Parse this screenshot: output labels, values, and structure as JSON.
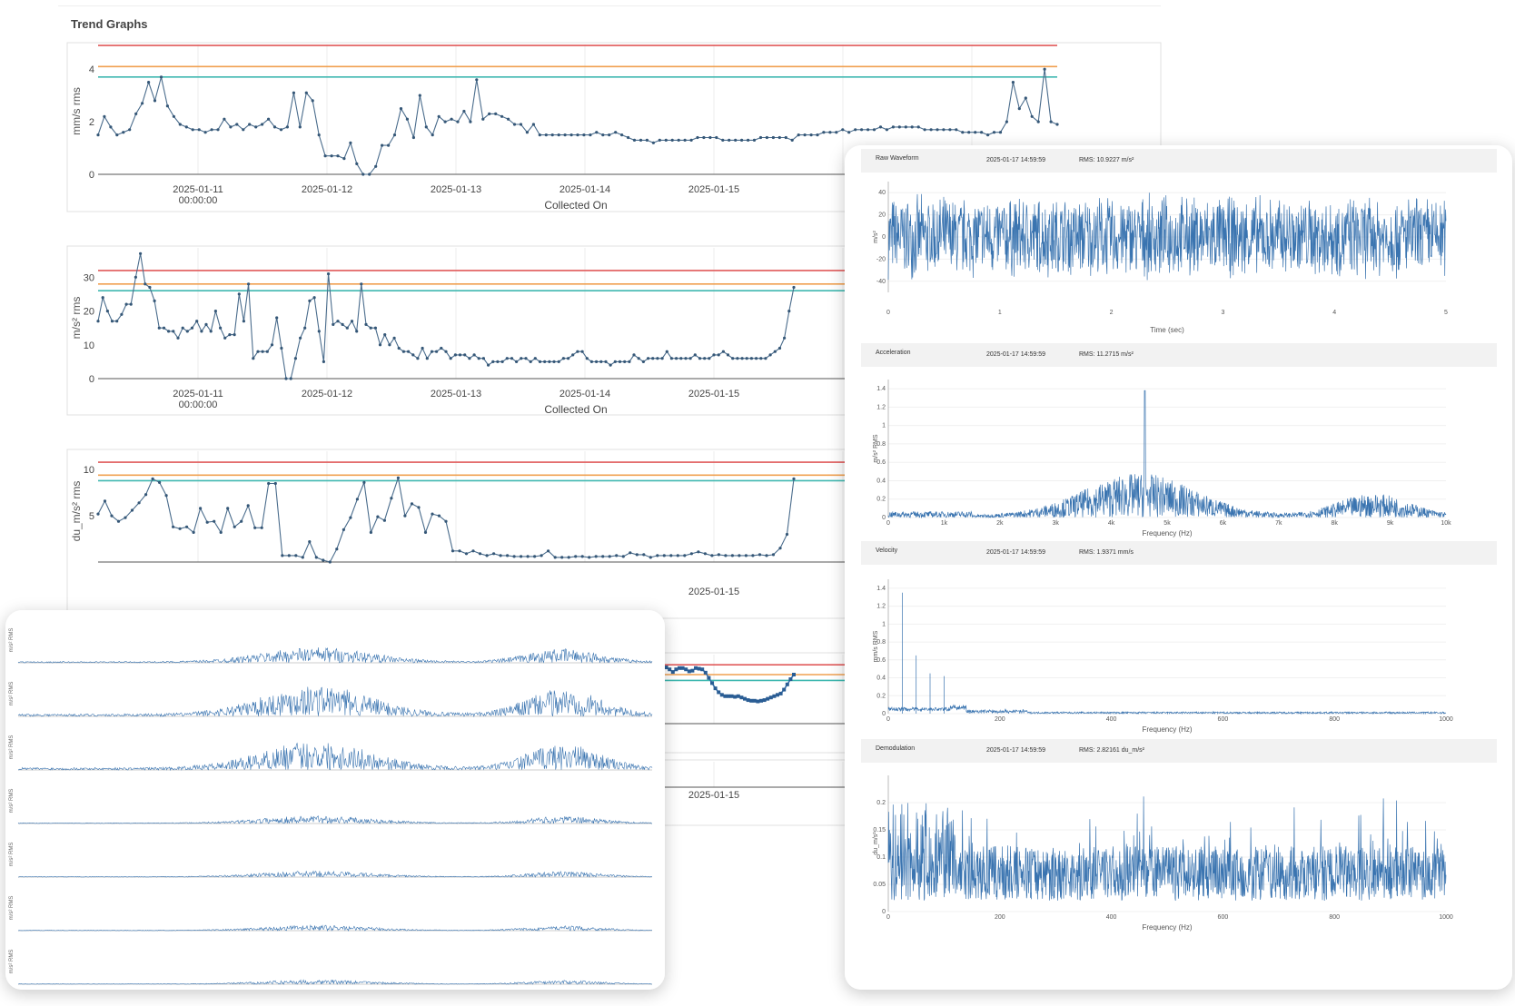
{
  "trend": {
    "title": "Trend Graphs",
    "xlabel": "Collected On"
  },
  "spectra": {
    "panels": [
      {
        "title": "Raw Waveform",
        "time": "2025-01-17 14:59:59",
        "rms_label": "RMS:",
        "rms_value": "10.9227 m/s²",
        "xlabel": "Time (sec)",
        "ylabel": "m/s²"
      },
      {
        "title": "Acceleration",
        "time": "2025-01-17 14:59:59",
        "rms_label": "RMS:",
        "rms_value": "11.2715 m/s²",
        "xlabel": "Frequency (Hz)",
        "ylabel": "m/s² RMS"
      },
      {
        "title": "Velocity",
        "time": "2025-01-17 14:59:59",
        "rms_label": "RMS:",
        "rms_value": "1.9371 mm/s",
        "xlabel": "Frequency (Hz)",
        "ylabel": "mm/s RMS"
      },
      {
        "title": "Demodulation",
        "time": "2025-01-17 14:59:59",
        "rms_label": "RMS:",
        "rms_value": "2.82161 du_m/s²",
        "xlabel": "Frequency (Hz)",
        "ylabel": "du_m/s²"
      }
    ]
  },
  "waterfall": {
    "ylabel": "m/s² RMS"
  },
  "chart_data": [
    {
      "type": "line",
      "ylabel": "mm/s rms",
      "xlabel": "Collected On",
      "ylim": [
        0,
        4.8
      ],
      "yticks": [
        "0",
        "2",
        "4"
      ],
      "xticks": [
        "2025-01-11\n00:00:00",
        "2025-01-12",
        "2025-01-13",
        "2025-01-14",
        "2025-01-15"
      ],
      "thresholds": [
        {
          "value": 4.9,
          "color": "#e05a5a"
        },
        {
          "value": 4.1,
          "color": "#f0a050"
        },
        {
          "value": 3.7,
          "color": "#3fb8b0"
        }
      ],
      "series": [
        {
          "values": [
            1.5,
            2.2,
            1.8,
            1.5,
            1.6,
            1.7,
            2.3,
            2.7,
            3.5,
            2.8,
            3.7,
            2.6,
            2.2,
            1.9,
            1.8,
            1.7,
            1.7,
            1.6,
            1.7,
            1.7,
            2.1,
            1.8,
            1.9,
            1.7,
            1.9,
            1.8,
            1.9,
            2.1,
            1.8,
            1.7,
            1.8,
            3.1,
            1.8,
            3.1,
            2.8,
            1.5,
            0.7,
            0.7,
            0.7,
            0.6,
            1.2,
            0.4,
            0.0,
            0.0,
            0.3,
            1.1,
            1.1,
            1.5,
            2.5,
            2.1,
            1.4,
            3.0,
            1.8,
            1.5,
            2.2,
            2.0,
            2.1,
            2.0,
            2.4,
            2.0,
            3.6,
            2.1,
            2.3,
            2.3,
            2.2,
            2.1,
            1.9,
            1.9,
            1.6,
            1.9,
            1.5,
            1.5,
            1.5,
            1.5,
            1.5,
            1.5,
            1.5,
            1.5,
            1.5,
            1.6,
            1.5,
            1.5,
            1.6,
            1.5,
            1.4,
            1.3,
            1.3,
            1.3,
            1.2,
            1.3,
            1.3,
            1.3,
            1.3,
            1.3,
            1.3,
            1.4,
            1.4,
            1.4,
            1.4,
            1.3,
            1.3,
            1.3,
            1.3,
            1.3,
            1.3,
            1.4,
            1.4,
            1.4,
            1.4,
            1.4,
            1.3,
            1.5,
            1.5,
            1.5,
            1.5,
            1.6,
            1.6,
            1.6,
            1.7,
            1.6,
            1.7,
            1.7,
            1.7,
            1.7,
            1.8,
            1.7,
            1.8,
            1.8,
            1.8,
            1.8,
            1.8,
            1.7,
            1.7,
            1.7,
            1.7,
            1.7,
            1.7,
            1.6,
            1.6,
            1.6,
            1.6,
            1.5,
            1.6,
            1.6,
            2.0,
            3.5,
            2.5,
            2.9,
            2.2,
            2.0,
            4.0,
            2.0,
            1.9
          ]
        }
      ]
    },
    {
      "type": "line",
      "ylabel": "m/s² rms",
      "xlabel": "Collected On",
      "ylim": [
        0,
        36
      ],
      "yticks": [
        "0",
        "10",
        "20",
        "30"
      ],
      "xticks": [
        "2025-01-11\n00:00:00",
        "2025-01-12",
        "2025-01-13",
        "2025-01-14",
        "2025-01-15"
      ],
      "thresholds": [
        {
          "value": 32,
          "color": "#e05a5a"
        },
        {
          "value": 28,
          "color": "#f0a050"
        },
        {
          "value": 26,
          "color": "#3fb8b0"
        }
      ],
      "series": [
        {
          "values": [
            17,
            24,
            20,
            17,
            17,
            19,
            22,
            22,
            30,
            37,
            28,
            27,
            23,
            15,
            15,
            14,
            14,
            12,
            15,
            14,
            15,
            17,
            14,
            16,
            14,
            20,
            15,
            12,
            13,
            13,
            25,
            17,
            28,
            6,
            8,
            8,
            8,
            10,
            18,
            9,
            0,
            0,
            6,
            12,
            15,
            23,
            24,
            14,
            5,
            31,
            16,
            17,
            16,
            15,
            17,
            14,
            28,
            16,
            15,
            15,
            10,
            13,
            10,
            12,
            9,
            8,
            8,
            7,
            6,
            9,
            6,
            8,
            8,
            9,
            8,
            6,
            7,
            7,
            7,
            6,
            7,
            6,
            6,
            4,
            5,
            5,
            5,
            6,
            6,
            5,
            6,
            6,
            5,
            6,
            5,
            5,
            5,
            5,
            5,
            6,
            6,
            7,
            8,
            8,
            6,
            5,
            5,
            5,
            5,
            4,
            5,
            5,
            5,
            5,
            7,
            6,
            5,
            6,
            6,
            6,
            6,
            8,
            6,
            6,
            6,
            6,
            6,
            7,
            6,
            6,
            6,
            7,
            7,
            8,
            7,
            6,
            6,
            6,
            6,
            6,
            6,
            6,
            6,
            7,
            8,
            9,
            12,
            20,
            27
          ]
        }
      ]
    },
    {
      "type": "line",
      "ylabel": "du_m/s² rms",
      "xlabel": "Collected On",
      "ylim": [
        0,
        11
      ],
      "yticks": [
        "5",
        "10"
      ],
      "xticks": [
        "2025-01-15"
      ],
      "thresholds": [
        {
          "value": 10.8,
          "color": "#e05a5a"
        },
        {
          "value": 9.4,
          "color": "#f0a050"
        },
        {
          "value": 8.8,
          "color": "#3fb8b0"
        }
      ],
      "series": [
        {
          "values": [
            5.2,
            6.6,
            5.0,
            4.4,
            4.8,
            5.6,
            6.4,
            7.3,
            9.0,
            8.6,
            7.2,
            3.8,
            3.6,
            3.8,
            3.2,
            5.8,
            4.3,
            4.4,
            3.2,
            5.8,
            3.8,
            4.4,
            6.1,
            3.7,
            3.7,
            8.5,
            8.5,
            0.7,
            0.7,
            0.7,
            0.5,
            2.2,
            0.5,
            0.2,
            0.0,
            1.4,
            3.5,
            4.8,
            6.8,
            8.6,
            3.2,
            4.9,
            4.5,
            6.9,
            9.1,
            5.0,
            6.3,
            5.9,
            3.2,
            5.2,
            5.0,
            4.4,
            1.2,
            1.2,
            0.9,
            1.2,
            0.9,
            0.7,
            0.9,
            0.7,
            0.7,
            0.6,
            0.6,
            0.6,
            0.6,
            0.7,
            1.2,
            0.5,
            0.5,
            0.5,
            0.6,
            0.6,
            0.5,
            0.6,
            0.6,
            0.6,
            0.7,
            0.6,
            1.0,
            0.8,
            0.8,
            0.5,
            0.7,
            0.7,
            0.7,
            0.7,
            0.7,
            0.9,
            1.1,
            0.9,
            0.7,
            0.8,
            0.7,
            0.7,
            0.7,
            0.7,
            0.7,
            0.8,
            0.7,
            0.8,
            1.5,
            3.0,
            9.0
          ]
        }
      ]
    },
    {
      "type": "line",
      "xticks": [
        "2025-01-15"
      ],
      "thresholds": [
        {
          "value": 9.0,
          "color": "#e05a5a"
        },
        {
          "value": 7.5,
          "color": "#f0a050"
        },
        {
          "value": 6.6,
          "color": "#3fb8b0"
        }
      ],
      "ylim": [
        0,
        10
      ],
      "series": [
        {
          "values": [
            3.5,
            3.6,
            3.6,
            4.0,
            4.5,
            5.2,
            6.0,
            6.8,
            7.6,
            8.2,
            8.6,
            8.6,
            8.3,
            7.9,
            8.3,
            8.5,
            8.5,
            8.3,
            8.0,
            8.1,
            8.5,
            8.4,
            8.3,
            7.8,
            7.0,
            6.2,
            5.4,
            4.8,
            4.4,
            4.2,
            4.2,
            4.2,
            4.1,
            4.2,
            4.0,
            3.8,
            3.6,
            3.5,
            3.5,
            3.4,
            3.5,
            3.6,
            3.8,
            4.0,
            4.2,
            4.4,
            4.6,
            5.2,
            6.0,
            6.8,
            7.5
          ]
        }
      ]
    },
    {
      "type": "line",
      "xticks": [
        "2025-01-15"
      ],
      "series": []
    },
    {
      "type": "line",
      "title": "Raw Waveform",
      "xlabel": "Time (sec)",
      "ylabel": "m/s²",
      "ylim": [
        -50,
        50
      ],
      "yticks": [
        "40",
        "20",
        "0",
        "-20",
        "-40"
      ],
      "xticks": [
        "0",
        "1",
        "2",
        "3",
        "4",
        "5"
      ],
      "xlim": [
        0,
        5.0
      ],
      "rms": "10.9227 m/s²"
    },
    {
      "type": "line",
      "title": "Acceleration",
      "xlabel": "Frequency (Hz)",
      "ylabel": "m/s² RMS",
      "ylim": [
        0,
        1.5
      ],
      "yticks": [
        "0",
        "0.2",
        "0.4",
        "0.6",
        "0.8",
        "1",
        "1.2",
        "1.4"
      ],
      "xticks": [
        "0",
        "1k",
        "2k",
        "3k",
        "4k",
        "5k",
        "6k",
        "7k",
        "8k",
        "9k",
        "10k"
      ],
      "xlim": [
        0,
        10000
      ],
      "peak": {
        "x": 4600,
        "y": 1.38
      },
      "rms": "11.2715 m/s²"
    },
    {
      "type": "line",
      "title": "Velocity",
      "xlabel": "Frequency (Hz)",
      "ylabel": "mm/s RMS",
      "ylim": [
        0,
        1.5
      ],
      "yticks": [
        "0",
        "0.2",
        "0.4",
        "0.6",
        "0.8",
        "1",
        "1.2",
        "1.4"
      ],
      "xticks": [
        "0",
        "200",
        "400",
        "600",
        "800",
        "1000"
      ],
      "xlim": [
        0,
        1000
      ],
      "peaks": [
        {
          "x": 25,
          "y": 1.35
        },
        {
          "x": 50,
          "y": 0.65
        },
        {
          "x": 75,
          "y": 0.45
        },
        {
          "x": 100,
          "y": 0.42
        }
      ],
      "rms": "1.9371 mm/s"
    },
    {
      "type": "line",
      "title": "Demodulation",
      "xlabel": "Frequency (Hz)",
      "ylabel": "du_m/s²",
      "ylim": [
        0,
        0.25
      ],
      "yticks": [
        "0",
        "0.05",
        "0.1",
        "0.15",
        "0.2"
      ],
      "xticks": [
        "0",
        "200",
        "400",
        "600",
        "800",
        "1000"
      ],
      "xlim": [
        0,
        1000
      ],
      "rms": "2.82161 du_m/s²"
    },
    {
      "type": "area",
      "title": "",
      "ylabel": "m/s² RMS",
      "rows": 7
    }
  ]
}
